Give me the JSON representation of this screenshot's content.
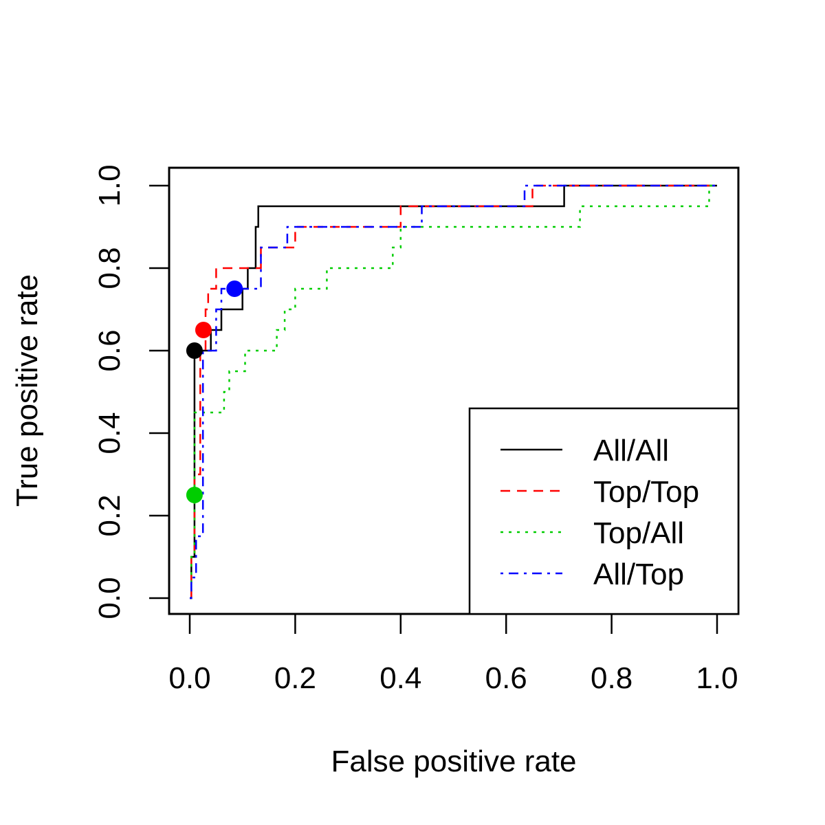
{
  "chart_data": {
    "type": "line",
    "xlabel": "False positive rate",
    "ylabel": "True positive rate",
    "xlim": [
      0,
      1
    ],
    "ylim": [
      0,
      1
    ],
    "xticks": [
      "0.0",
      "0.2",
      "0.4",
      "0.6",
      "0.8",
      "1.0"
    ],
    "yticks": [
      "0.0",
      "0.2",
      "0.4",
      "0.6",
      "0.8",
      "1.0"
    ],
    "grid": false,
    "legend_position": "bottom-right",
    "series": [
      {
        "name": "All/All",
        "color": "#000000",
        "dash": "solid",
        "step_points": [
          [
            0,
            0
          ],
          [
            0.003,
            0
          ],
          [
            0.003,
            0.1
          ],
          [
            0.009,
            0.1
          ],
          [
            0.009,
            0.6
          ],
          [
            0.04,
            0.6
          ],
          [
            0.04,
            0.65
          ],
          [
            0.06,
            0.65
          ],
          [
            0.06,
            0.7
          ],
          [
            0.1,
            0.7
          ],
          [
            0.1,
            0.75
          ],
          [
            0.11,
            0.75
          ],
          [
            0.11,
            0.8
          ],
          [
            0.125,
            0.8
          ],
          [
            0.125,
            0.9
          ],
          [
            0.13,
            0.9
          ],
          [
            0.13,
            0.95
          ],
          [
            0.71,
            0.95
          ],
          [
            0.71,
            1.0
          ],
          [
            1.0,
            1.0
          ]
        ],
        "point": [
          0.009,
          0.6
        ]
      },
      {
        "name": "Top/Top",
        "color": "#ff0000",
        "dash": "dashed",
        "step_points": [
          [
            0,
            0
          ],
          [
            0.003,
            0
          ],
          [
            0.003,
            0.1
          ],
          [
            0.009,
            0.1
          ],
          [
            0.009,
            0.3
          ],
          [
            0.02,
            0.3
          ],
          [
            0.02,
            0.6
          ],
          [
            0.03,
            0.6
          ],
          [
            0.03,
            0.7
          ],
          [
            0.035,
            0.7
          ],
          [
            0.035,
            0.75
          ],
          [
            0.05,
            0.75
          ],
          [
            0.05,
            0.8
          ],
          [
            0.135,
            0.8
          ],
          [
            0.135,
            0.85
          ],
          [
            0.2,
            0.85
          ],
          [
            0.2,
            0.9
          ],
          [
            0.4,
            0.9
          ],
          [
            0.4,
            0.95
          ],
          [
            0.65,
            0.95
          ],
          [
            0.65,
            1.0
          ],
          [
            1.0,
            1.0
          ]
        ],
        "point": [
          0.026,
          0.65
        ]
      },
      {
        "name": "Top/All",
        "color": "#00cd00",
        "dash": "dotted",
        "step_points": [
          [
            0,
            0
          ],
          [
            0.003,
            0
          ],
          [
            0.003,
            0.1
          ],
          [
            0.009,
            0.1
          ],
          [
            0.009,
            0.45
          ],
          [
            0.03,
            0.45
          ],
          [
            0.03,
            0.45
          ],
          [
            0.065,
            0.45
          ],
          [
            0.065,
            0.5
          ],
          [
            0.075,
            0.5
          ],
          [
            0.075,
            0.55
          ],
          [
            0.105,
            0.55
          ],
          [
            0.105,
            0.6
          ],
          [
            0.165,
            0.6
          ],
          [
            0.165,
            0.65
          ],
          [
            0.18,
            0.65
          ],
          [
            0.18,
            0.7
          ],
          [
            0.2,
            0.7
          ],
          [
            0.2,
            0.75
          ],
          [
            0.26,
            0.75
          ],
          [
            0.26,
            0.8
          ],
          [
            0.385,
            0.8
          ],
          [
            0.385,
            0.85
          ],
          [
            0.4,
            0.85
          ],
          [
            0.4,
            0.9
          ],
          [
            0.74,
            0.9
          ],
          [
            0.74,
            0.95
          ],
          [
            0.985,
            0.95
          ],
          [
            0.985,
            1.0
          ],
          [
            1.0,
            1.0
          ]
        ],
        "point": [
          0.009,
          0.25
        ]
      },
      {
        "name": "All/Top",
        "color": "#0000ff",
        "dash": "dotdash",
        "step_points": [
          [
            0,
            0
          ],
          [
            0.003,
            0
          ],
          [
            0.003,
            0.05
          ],
          [
            0.012,
            0.05
          ],
          [
            0.012,
            0.15
          ],
          [
            0.025,
            0.15
          ],
          [
            0.025,
            0.6
          ],
          [
            0.05,
            0.6
          ],
          [
            0.05,
            0.7
          ],
          [
            0.06,
            0.7
          ],
          [
            0.06,
            0.75
          ],
          [
            0.135,
            0.75
          ],
          [
            0.135,
            0.85
          ],
          [
            0.185,
            0.85
          ],
          [
            0.185,
            0.9
          ],
          [
            0.44,
            0.9
          ],
          [
            0.44,
            0.95
          ],
          [
            0.635,
            0.95
          ],
          [
            0.635,
            1.0
          ],
          [
            1.0,
            1.0
          ]
        ],
        "point": [
          0.085,
          0.75
        ]
      }
    ]
  }
}
